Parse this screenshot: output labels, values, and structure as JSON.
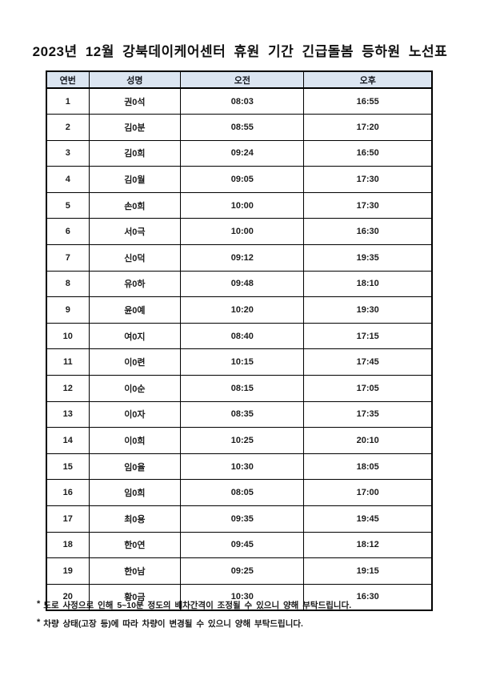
{
  "title": "2023년 12월 강북데이케어센터 휴원 기간 긴급돌봄 등하원 노선표",
  "table": {
    "headers": [
      "연번",
      "성명",
      "오전",
      "오후"
    ],
    "rows": [
      {
        "no": "1",
        "name": "권0석",
        "am": "08:03",
        "pm": "16:55"
      },
      {
        "no": "2",
        "name": "김0분",
        "am": "08:55",
        "pm": "17:20"
      },
      {
        "no": "3",
        "name": "김0희",
        "am": "09:24",
        "pm": "16:50"
      },
      {
        "no": "4",
        "name": "김0월",
        "am": "09:05",
        "pm": "17:30"
      },
      {
        "no": "5",
        "name": "손0희",
        "am": "10:00",
        "pm": "17:30"
      },
      {
        "no": "6",
        "name": "서0극",
        "am": "10:00",
        "pm": "16:30"
      },
      {
        "no": "7",
        "name": "신0덕",
        "am": "09:12",
        "pm": "19:35"
      },
      {
        "no": "8",
        "name": "유0하",
        "am": "09:48",
        "pm": "18:10"
      },
      {
        "no": "9",
        "name": "윤0예",
        "am": "10:20",
        "pm": "19:30"
      },
      {
        "no": "10",
        "name": "여0지",
        "am": "08:40",
        "pm": "17:15"
      },
      {
        "no": "11",
        "name": "이0련",
        "am": "10:15",
        "pm": "17:45"
      },
      {
        "no": "12",
        "name": "이0순",
        "am": "08:15",
        "pm": "17:05"
      },
      {
        "no": "13",
        "name": "이0자",
        "am": "08:35",
        "pm": "17:35"
      },
      {
        "no": "14",
        "name": "이0희",
        "am": "10:25",
        "pm": "20:10"
      },
      {
        "no": "15",
        "name": "임0율",
        "am": "10:30",
        "pm": "18:05"
      },
      {
        "no": "16",
        "name": "임0희",
        "am": "08:05",
        "pm": "17:00"
      },
      {
        "no": "17",
        "name": "최0용",
        "am": "09:35",
        "pm": "19:45"
      },
      {
        "no": "18",
        "name": "한0연",
        "am": "09:45",
        "pm": "18:12"
      },
      {
        "no": "19",
        "name": "한0남",
        "am": "09:25",
        "pm": "19:15"
      },
      {
        "no": "20",
        "name": "황0금",
        "am": "10:30",
        "pm": "16:30"
      }
    ]
  },
  "notes": [
    {
      "bullet": "*",
      "text": "도로 사정으로 인해 5~10분 정도의 배차간격이 조정될 수 있으니 양해 부탁드립니다."
    },
    {
      "bullet": "*",
      "text": "차량 상태(고장 등)에 따라 차량이 변경될 수 있으니 양해 부탁드립니다."
    }
  ],
  "colors": {
    "header_bg": "#dbe5f1",
    "border": "#000000",
    "text": "#1a1a1a"
  }
}
